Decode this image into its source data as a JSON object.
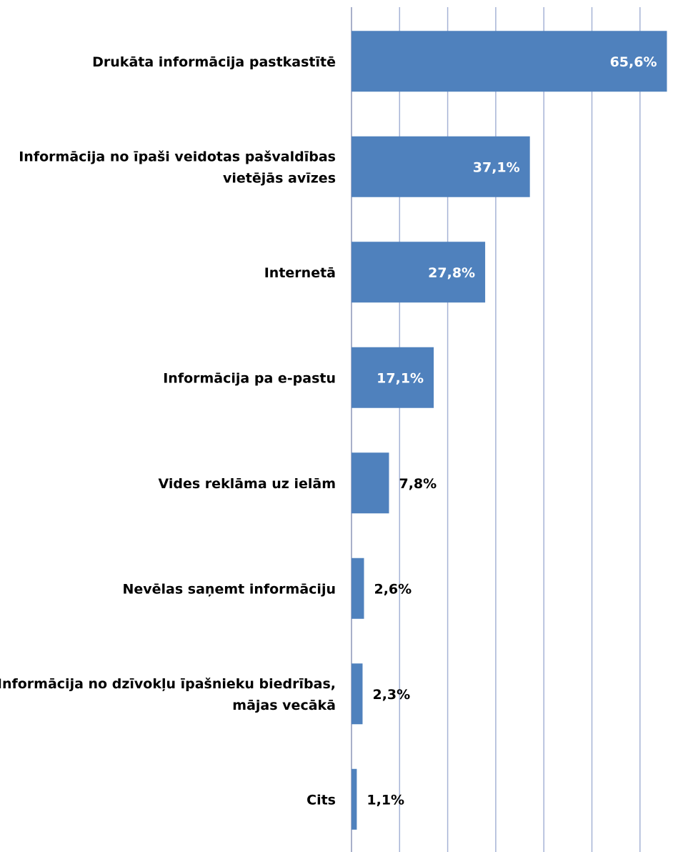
{
  "chart_data": {
    "type": "bar",
    "orientation": "horizontal",
    "categories": [
      [
        "Drukāta informācija pastkastītē"
      ],
      [
        "Informācija no īpaši veidotas pašvaldības",
        "vietējās avīzes"
      ],
      [
        "Internetā"
      ],
      [
        "Informācija pa e-pastu"
      ],
      [
        "Vides reklāma uz ielām"
      ],
      [
        "Nevēlas saņemt informāciju"
      ],
      [
        "Informācija no dzīvokļu īpašnieku biedrības,",
        "mājas vecākā"
      ],
      [
        "Cits"
      ]
    ],
    "values": [
      65.6,
      37.1,
      27.8,
      17.1,
      7.8,
      2.6,
      2.3,
      1.1
    ],
    "value_labels": [
      "65,6%",
      "37,1%",
      "27,8%",
      "17,1%",
      "7,8%",
      "2,6%",
      "2,3%",
      "1,1%"
    ],
    "xlim": [
      0,
      70
    ],
    "grid_step": 10,
    "grid": true,
    "bar_color": "#4f81bd",
    "grid_color": "#a6b3d6",
    "label_inside_color": "#ffffff",
    "label_outside_color": "#000000"
  }
}
